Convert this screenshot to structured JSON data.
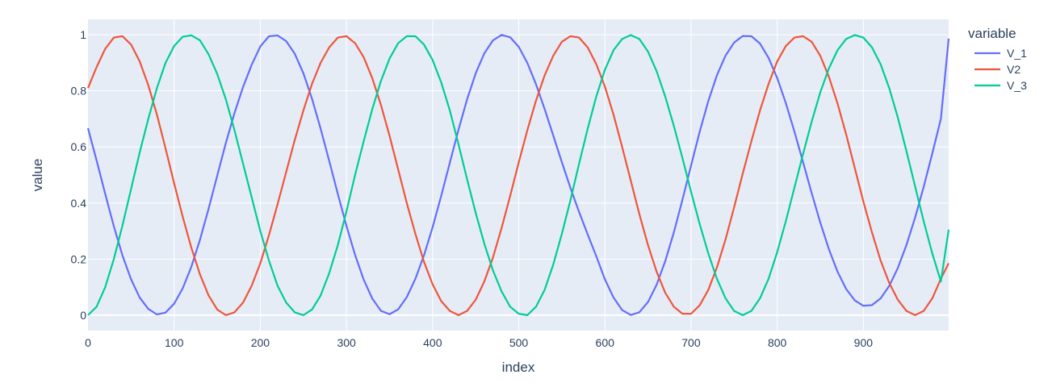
{
  "chart_data": {
    "type": "line",
    "title": "",
    "xlabel": "index",
    "ylabel": "value",
    "xlim": [
      0,
      999
    ],
    "ylim": [
      -0.055,
      1.055
    ],
    "xticks": [
      0,
      100,
      200,
      300,
      400,
      500,
      600,
      700,
      800,
      900
    ],
    "yticks": [
      0,
      0.2,
      0.4,
      0.6,
      0.8,
      1
    ],
    "xtick_labels": [
      "0",
      "100",
      "200",
      "300",
      "400",
      "500",
      "600",
      "700",
      "800",
      "900"
    ],
    "ytick_labels": [
      "0",
      "0.2",
      "0.4",
      "0.6",
      "0.8",
      "1"
    ],
    "grid": true,
    "background": "#e5ecf6",
    "legend": {
      "title": "variable",
      "placement": "right"
    },
    "series": [
      {
        "name": "V_1",
        "color": "#636efa",
        "x": [
          0,
          10,
          20,
          30,
          40,
          50,
          60,
          70,
          80,
          90,
          100,
          110,
          120,
          130,
          140,
          150,
          160,
          170,
          180,
          190,
          200,
          210,
          220,
          230,
          240,
          250,
          260,
          270,
          280,
          290,
          300,
          310,
          320,
          330,
          340,
          350,
          360,
          370,
          380,
          390,
          400,
          410,
          420,
          430,
          440,
          450,
          460,
          470,
          480,
          490,
          500,
          510,
          520,
          530,
          540,
          550,
          560,
          570,
          580,
          590,
          600,
          610,
          620,
          630,
          640,
          650,
          660,
          670,
          680,
          690,
          700,
          710,
          720,
          730,
          740,
          750,
          760,
          770,
          780,
          790,
          800,
          810,
          820,
          830,
          840,
          850,
          860,
          870,
          880,
          890,
          900,
          910,
          920,
          930,
          940,
          950,
          960,
          970,
          980,
          990,
          999
        ],
        "values": [
          0.6667,
          0.5516,
          0.4322,
          0.3167,
          0.2129,
          0.1277,
          0.0628,
          0.0221,
          0.0025,
          0.0093,
          0.0408,
          0.0959,
          0.1729,
          0.2693,
          0.3799,
          0.4974,
          0.6137,
          0.7205,
          0.814,
          0.8931,
          0.958,
          0.9946,
          0.9976,
          0.9774,
          0.9323,
          0.8627,
          0.7719,
          0.6651,
          0.55,
          0.432,
          0.3185,
          0.2149,
          0.1266,
          0.0589,
          0.0155,
          0.0032,
          0.0206,
          0.0639,
          0.1295,
          0.2134,
          0.3135,
          0.4256,
          0.5438,
          0.6609,
          0.7695,
          0.8624,
          0.9336,
          0.9799,
          0.9994,
          0.9913,
          0.9568,
          0.8994,
          0.8236,
          0.7354,
          0.6409,
          0.5456,
          0.4538,
          0.368,
          0.2878,
          0.21,
          0.1277,
          0.0628,
          0.0182,
          0.0006,
          0.0103,
          0.0468,
          0.1083,
          0.1923,
          0.2951,
          0.4115,
          0.5339,
          0.654,
          0.7635,
          0.8554,
          0.9257,
          0.9722,
          0.9958,
          0.995,
          0.9687,
          0.9176,
          0.8457,
          0.7564,
          0.6545,
          0.5455,
          0.4353,
          0.33,
          0.2351,
          0.1551,
          0.0935,
          0.0526,
          0.0334,
          0.0358,
          0.0596,
          0.1041,
          0.1681,
          0.25,
          0.3473,
          0.4575,
          0.5767,
          0.7007,
          0.986
        ]
      },
      {
        "name": "V2",
        "color": "#ef553b",
        "x": [
          0,
          10,
          20,
          30,
          40,
          50,
          60,
          70,
          80,
          90,
          100,
          110,
          120,
          130,
          140,
          150,
          160,
          170,
          180,
          190,
          200,
          210,
          220,
          230,
          240,
          250,
          260,
          270,
          280,
          290,
          300,
          310,
          320,
          330,
          340,
          350,
          360,
          370,
          380,
          390,
          400,
          410,
          420,
          430,
          440,
          450,
          460,
          470,
          480,
          490,
          500,
          510,
          520,
          530,
          540,
          550,
          560,
          570,
          580,
          590,
          600,
          610,
          620,
          630,
          640,
          650,
          660,
          670,
          680,
          690,
          700,
          710,
          720,
          730,
          740,
          750,
          760,
          770,
          780,
          790,
          800,
          810,
          820,
          830,
          840,
          850,
          860,
          870,
          880,
          890,
          900,
          910,
          920,
          930,
          940,
          950,
          960,
          970,
          980,
          990,
          999
        ],
        "values": [
          0.81,
          0.885,
          0.95,
          0.99,
          0.995,
          0.965,
          0.905,
          0.82,
          0.715,
          0.595,
          0.47,
          0.35,
          0.24,
          0.145,
          0.07,
          0.02,
          0.0,
          0.01,
          0.045,
          0.105,
          0.185,
          0.285,
          0.395,
          0.51,
          0.625,
          0.73,
          0.825,
          0.9,
          0.955,
          0.99,
          0.995,
          0.97,
          0.92,
          0.845,
          0.75,
          0.64,
          0.52,
          0.4,
          0.29,
          0.19,
          0.11,
          0.05,
          0.015,
          0.0,
          0.015,
          0.055,
          0.12,
          0.205,
          0.31,
          0.425,
          0.545,
          0.66,
          0.765,
          0.855,
          0.925,
          0.975,
          0.995,
          0.99,
          0.955,
          0.895,
          0.815,
          0.715,
          0.6,
          0.48,
          0.36,
          0.25,
          0.155,
          0.08,
          0.03,
          0.005,
          0.005,
          0.035,
          0.09,
          0.17,
          0.27,
          0.385,
          0.505,
          0.62,
          0.73,
          0.825,
          0.905,
          0.96,
          0.99,
          0.995,
          0.975,
          0.925,
          0.85,
          0.755,
          0.645,
          0.525,
          0.405,
          0.295,
          0.195,
          0.115,
          0.055,
          0.015,
          0.0,
          0.015,
          0.06,
          0.13,
          0.185
        ]
      },
      {
        "name": "V_3",
        "color": "#00cc96",
        "x": [
          0,
          10,
          20,
          30,
          40,
          50,
          60,
          70,
          80,
          90,
          100,
          110,
          120,
          130,
          140,
          150,
          160,
          170,
          180,
          190,
          200,
          210,
          220,
          230,
          240,
          250,
          260,
          270,
          280,
          290,
          300,
          310,
          320,
          330,
          340,
          350,
          360,
          370,
          380,
          390,
          400,
          410,
          420,
          430,
          440,
          450,
          460,
          470,
          480,
          490,
          500,
          510,
          520,
          530,
          540,
          550,
          560,
          570,
          580,
          590,
          600,
          610,
          620,
          630,
          640,
          650,
          660,
          670,
          680,
          690,
          700,
          710,
          720,
          730,
          740,
          750,
          760,
          770,
          780,
          790,
          800,
          810,
          820,
          830,
          840,
          850,
          860,
          870,
          880,
          890,
          900,
          910,
          920,
          930,
          940,
          950,
          960,
          970,
          980,
          990,
          999
        ],
        "values": [
          0.0,
          0.03,
          0.1,
          0.2,
          0.32,
          0.45,
          0.58,
          0.7,
          0.81,
          0.9,
          0.96,
          0.993,
          0.998,
          0.98,
          0.93,
          0.86,
          0.77,
          0.66,
          0.54,
          0.42,
          0.3,
          0.195,
          0.105,
          0.045,
          0.01,
          0.0,
          0.02,
          0.07,
          0.15,
          0.25,
          0.37,
          0.5,
          0.62,
          0.735,
          0.835,
          0.915,
          0.97,
          0.995,
          0.995,
          0.965,
          0.91,
          0.83,
          0.73,
          0.61,
          0.485,
          0.365,
          0.255,
          0.16,
          0.085,
          0.03,
          0.005,
          0.0,
          0.03,
          0.09,
          0.18,
          0.29,
          0.41,
          0.54,
          0.665,
          0.78,
          0.875,
          0.945,
          0.985,
          0.999,
          0.985,
          0.94,
          0.87,
          0.78,
          0.675,
          0.56,
          0.44,
          0.325,
          0.22,
          0.13,
          0.06,
          0.015,
          0.0,
          0.015,
          0.06,
          0.13,
          0.225,
          0.335,
          0.455,
          0.575,
          0.69,
          0.795,
          0.88,
          0.945,
          0.985,
          0.999,
          0.99,
          0.955,
          0.895,
          0.81,
          0.705,
          0.585,
          0.46,
          0.335,
          0.22,
          0.12,
          0.305
        ]
      }
    ]
  }
}
